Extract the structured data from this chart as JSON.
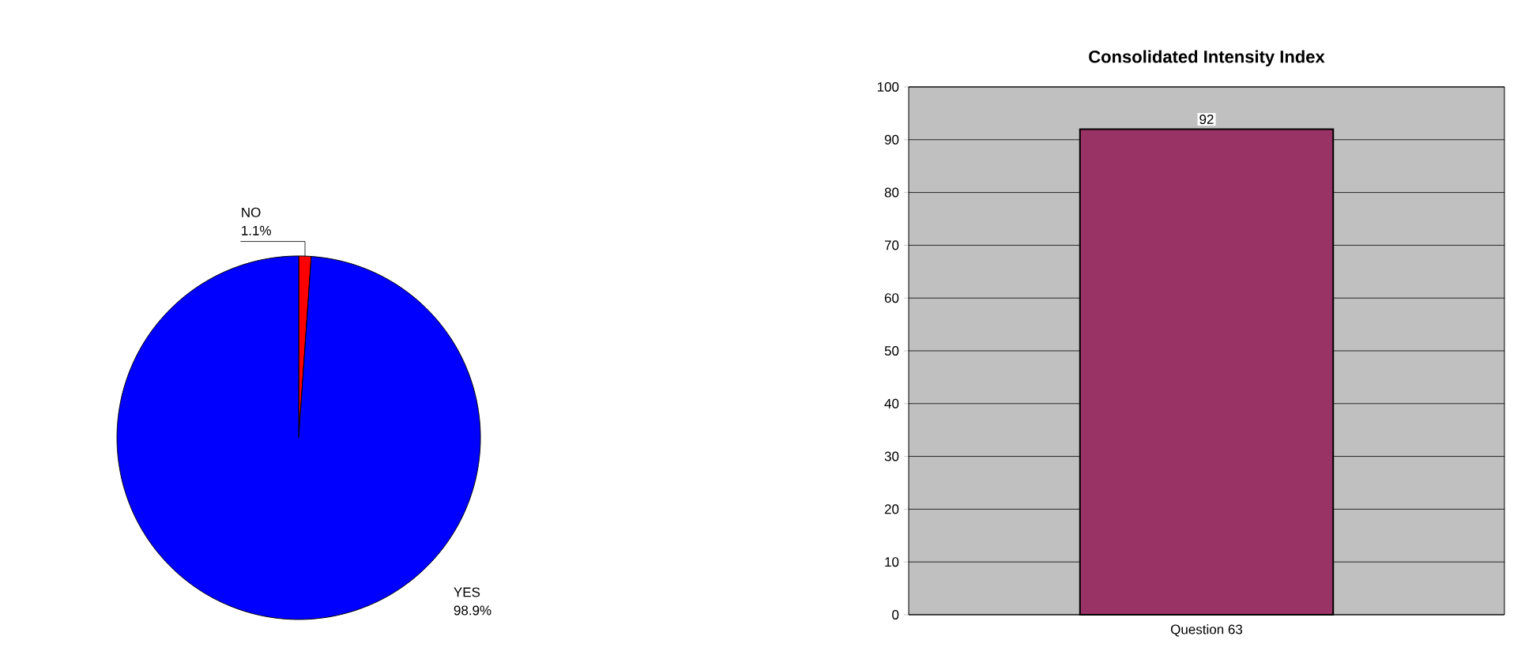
{
  "chart_data": [
    {
      "type": "pie",
      "categories": [
        "NO",
        "YES"
      ],
      "values": [
        1.1,
        98.9
      ],
      "colors": [
        "#ff0000",
        "#0000ff"
      ],
      "value_labels": [
        "1.1%",
        "98.9%"
      ]
    },
    {
      "type": "bar",
      "title": "Consolidated Intensity Index",
      "categories": [
        "Question 63"
      ],
      "values": [
        92
      ],
      "color": "#993366",
      "ylim": [
        0,
        100
      ],
      "yticks": [
        0,
        10,
        20,
        30,
        40,
        50,
        60,
        70,
        80,
        90,
        100
      ],
      "grid": "y",
      "data_labels": true
    }
  ]
}
